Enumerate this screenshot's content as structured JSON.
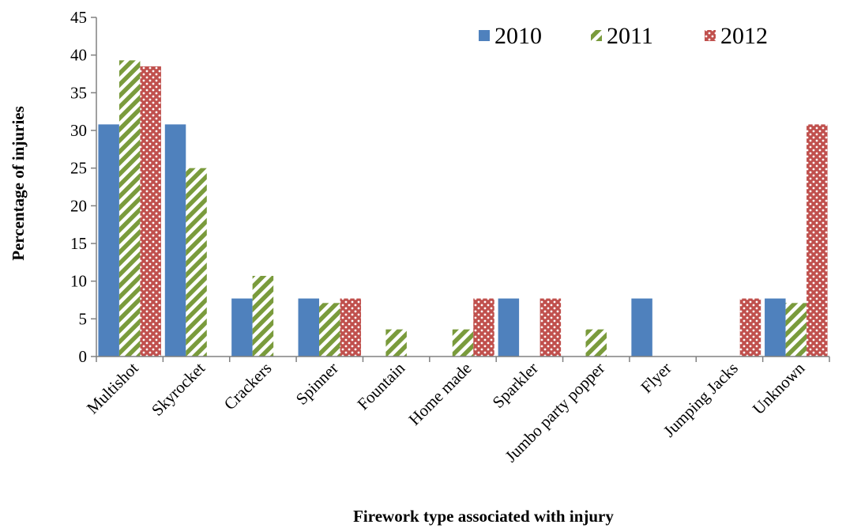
{
  "chart_data": {
    "type": "bar",
    "title": "",
    "xlabel": "Firework type associated with injury",
    "ylabel": "Percentage of injuries",
    "ylim": [
      0,
      45
    ],
    "yticks": [
      0,
      5,
      10,
      15,
      20,
      25,
      30,
      35,
      40,
      45
    ],
    "grid": false,
    "legend_position": "top-right",
    "categories": [
      "Multishot",
      "Skyrocket",
      "Crackers",
      "Spinner",
      "Fountain",
      "Home made",
      "Sparkler",
      "Jumbo party popper",
      "Flyer",
      "Jumping Jacks",
      "Unknown"
    ],
    "series": [
      {
        "name": "2010",
        "color": "#4F81BD",
        "pattern": "solid",
        "values": [
          30.8,
          30.8,
          7.7,
          7.7,
          0,
          0,
          7.7,
          0,
          7.7,
          0,
          7.7
        ]
      },
      {
        "name": "2011",
        "color": "#9BBB59",
        "pattern": "diagonal-stripes",
        "values": [
          39.3,
          25.0,
          10.7,
          7.1,
          3.6,
          3.6,
          0,
          3.6,
          0,
          0,
          7.1
        ]
      },
      {
        "name": "2012",
        "color": "#C0504D",
        "pattern": "dots",
        "values": [
          38.5,
          0,
          0,
          7.7,
          0,
          7.7,
          7.7,
          0,
          0,
          7.7,
          30.8
        ]
      }
    ]
  }
}
